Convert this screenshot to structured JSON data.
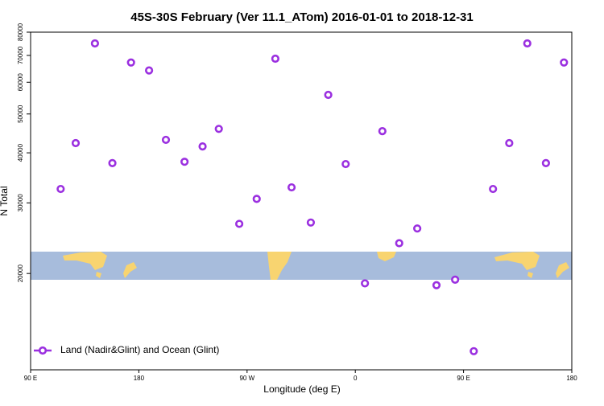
{
  "chart_data": {
    "type": "scatter",
    "title": "45S-30S February (Ver 11.1_ATom)   2016-01-01 to 2018-12-31",
    "x_label": "Longitude (deg E)",
    "y_label": "N Total",
    "log_y": true,
    "x": [
      115,
      127.5,
      143.5,
      158,
      173.5,
      188.5,
      202.5,
      218,
      233,
      246.5,
      263.5,
      278,
      293.5,
      307,
      323,
      337.5,
      352,
      368,
      382.5,
      396.5,
      411.5,
      427.5,
      443,
      458.5,
      474.5,
      488,
      503,
      518.5,
      533.5
    ],
    "series": [
      {
        "name": "Land (Nadir&Glint) and Ocean (Glint)",
        "color": "#9b30e0",
        "values": [
          32500,
          42300,
          75000,
          37700,
          67200,
          64200,
          43100,
          38000,
          41500,
          45900,
          26600,
          30700,
          68700,
          32800,
          26800,
          55800,
          37500,
          18900,
          45300,
          23800,
          25900,
          18700,
          19300,
          12800,
          32500,
          42300,
          75000,
          37700,
          67200
        ]
      }
    ],
    "xlim": [
      90,
      540
    ],
    "xticks": [
      {
        "value": 90,
        "label": "90 E"
      },
      180,
      {
        "value": 270,
        "label": "90 W"
      },
      {
        "value": 360,
        "label": "0"
      },
      {
        "value": 450,
        "label": "90 E"
      },
      {
        "value": 540,
        "label": "180"
      }
    ],
    "ylim": [
      11500,
      80000
    ],
    "yticks": [
      20000,
      30000,
      40000,
      50000,
      60000,
      70000,
      80000
    ],
    "legend": "lower left"
  }
}
